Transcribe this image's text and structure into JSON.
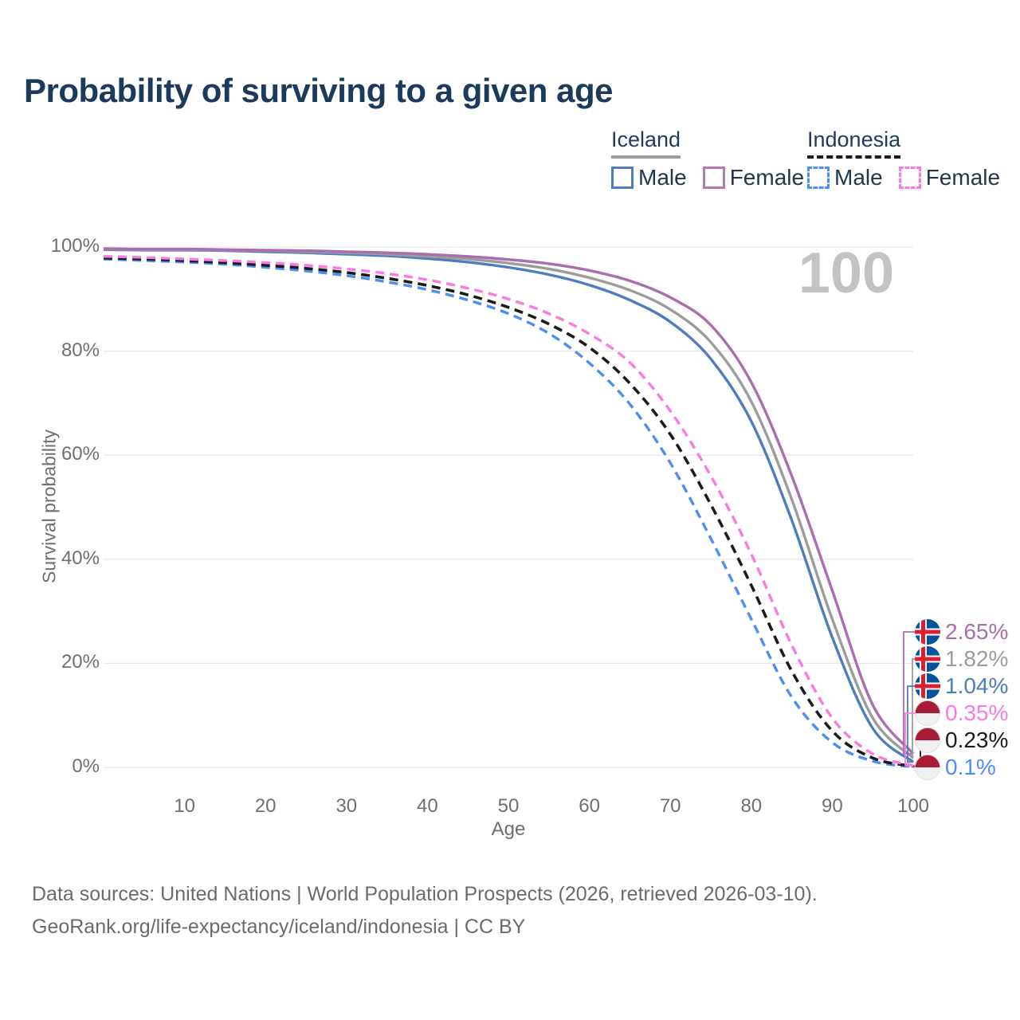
{
  "title": "Probability of surviving to a given age",
  "watermark": "100",
  "legend": {
    "groups": [
      {
        "label": "Iceland",
        "line_style": "solid",
        "line_color": "#9c9c9c",
        "items": [
          {
            "label": "Male",
            "color": "#4d7dbf"
          },
          {
            "label": "Female",
            "color": "#b678b4"
          }
        ]
      },
      {
        "label": "Indonesia",
        "line_style": "dashed",
        "line_color": "#1b1b1b",
        "items": [
          {
            "label": "Male",
            "color": "#4d8ef2"
          },
          {
            "label": "Female",
            "color": "#fb79e2"
          }
        ]
      }
    ]
  },
  "chart_data": {
    "type": "line",
    "title": "Probability of surviving to a given age",
    "xlabel": "Age",
    "ylabel": "Survival probability",
    "xlim": [
      0,
      100
    ],
    "ylim": [
      0,
      100
    ],
    "grid": "horizontal",
    "legend_position": "top-right",
    "x_ticks": [
      10,
      20,
      30,
      40,
      50,
      60,
      70,
      80,
      90,
      100
    ],
    "y_ticks": [
      {
        "value": 0,
        "label": "0%"
      },
      {
        "value": 20,
        "label": "20%"
      },
      {
        "value": 40,
        "label": "40%"
      },
      {
        "value": 60,
        "label": "60%"
      },
      {
        "value": 80,
        "label": "80%"
      },
      {
        "value": 100,
        "label": "100%"
      }
    ],
    "x": [
      0,
      5,
      10,
      15,
      20,
      25,
      30,
      35,
      40,
      45,
      50,
      55,
      60,
      65,
      70,
      75,
      80,
      85,
      90,
      95,
      100
    ],
    "series": [
      {
        "name": "Iceland Female",
        "country": "Iceland",
        "sex": "Female",
        "flag": "iceland-flag-icon",
        "color": "#ab6dad",
        "dashed": false,
        "end_label": "2.65%",
        "values": [
          99.7,
          99.6,
          99.6,
          99.5,
          99.4,
          99.3,
          99.1,
          98.9,
          98.6,
          98.2,
          97.6,
          96.8,
          95.5,
          93.5,
          90.3,
          85.0,
          74.0,
          56.0,
          34.0,
          12.0,
          2.65
        ]
      },
      {
        "name": "Iceland Both sexes",
        "country": "Iceland",
        "sex": "Total",
        "flag": "iceland-flag-icon",
        "color": "#9c9c9c",
        "dashed": false,
        "end_label": "1.82%",
        "values": [
          99.6,
          99.5,
          99.5,
          99.4,
          99.3,
          99.1,
          98.9,
          98.6,
          98.2,
          97.7,
          96.9,
          95.8,
          94.1,
          91.7,
          88.0,
          81.7,
          70.3,
          51.5,
          28.5,
          9.5,
          1.82
        ]
      },
      {
        "name": "Iceland Male",
        "country": "Iceland",
        "sex": "Male",
        "flag": "iceland-flag-icon",
        "color": "#4d7dbf",
        "dashed": false,
        "end_label": "1.04%",
        "values": [
          99.5,
          99.4,
          99.4,
          99.3,
          99.1,
          98.9,
          98.6,
          98.3,
          97.8,
          97.1,
          96.1,
          94.7,
          92.7,
          89.8,
          85.6,
          78.5,
          66.5,
          47.5,
          25.0,
          7.5,
          1.04
        ]
      },
      {
        "name": "Indonesia Female",
        "country": "Indonesia",
        "sex": "Female",
        "flag": "indonesia-flag-icon",
        "color": "#fb79e2",
        "dashed": true,
        "end_label": "0.35%",
        "values": [
          98.2,
          98.0,
          97.7,
          97.4,
          97.0,
          96.5,
          95.8,
          94.9,
          93.7,
          92.1,
          90.0,
          87.2,
          83.3,
          77.8,
          68.5,
          56.0,
          41.0,
          23.5,
          9.5,
          2.6,
          0.35
        ]
      },
      {
        "name": "Indonesia Both sexes",
        "country": "Indonesia",
        "sex": "Total",
        "flag": "indonesia-flag-icon",
        "color": "#1b1b1b",
        "dashed": true,
        "end_label": "0.23%",
        "values": [
          97.9,
          97.7,
          97.4,
          97.0,
          96.5,
          95.9,
          95.1,
          94.0,
          92.6,
          90.8,
          88.4,
          85.2,
          80.7,
          73.8,
          64.0,
          50.5,
          35.0,
          18.5,
          7.0,
          1.8,
          0.23
        ]
      },
      {
        "name": "Indonesia Male",
        "country": "Indonesia",
        "sex": "Male",
        "flag": "indonesia-flag-icon",
        "color": "#4d8ef2",
        "dashed": true,
        "end_label": "0.1%",
        "values": [
          97.7,
          97.4,
          97.1,
          96.7,
          96.1,
          95.4,
          94.5,
          93.3,
          91.8,
          89.8,
          87.2,
          83.4,
          77.7,
          69.8,
          58.5,
          44.0,
          28.5,
          13.5,
          4.8,
          1.2,
          0.1
        ]
      }
    ]
  },
  "footer": {
    "line1": "Data sources: United Nations | World Population Prospects (2026, retrieved 2026-03-10).",
    "line2": "GeoRank.org/life-expectancy/iceland/indonesia | CC BY"
  }
}
